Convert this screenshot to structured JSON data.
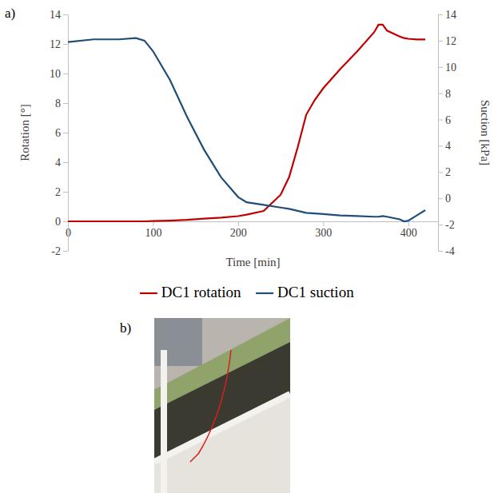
{
  "chart_data": {
    "type": "line",
    "panel_labels": [
      "a)",
      "b)"
    ],
    "xlabel": "Time [min]",
    "ylabel": "Rotation [°]",
    "y2label": "Suction [kPa]",
    "xlim": [
      0,
      435
    ],
    "xticks": [
      0,
      100,
      200,
      300,
      400
    ],
    "ylim": [
      -2,
      14
    ],
    "yticks": [
      -2,
      0,
      2,
      4,
      6,
      8,
      10,
      12,
      14
    ],
    "y2lim": [
      -4,
      14
    ],
    "y2ticks": [
      -4,
      -2,
      0,
      2,
      4,
      6,
      8,
      10,
      12,
      14
    ],
    "grid": false,
    "legend": "bottom",
    "x": [
      0,
      30,
      60,
      80,
      90,
      100,
      120,
      140,
      160,
      180,
      200,
      210,
      230,
      250,
      260,
      270,
      280,
      290,
      300,
      320,
      340,
      360,
      365,
      370,
      375,
      390,
      395,
      400,
      410,
      420
    ],
    "series": [
      {
        "name": "DC1 rotation",
        "color": "#c00000",
        "values": [
          0,
          0,
          0,
          0,
          0,
          0.02,
          0.05,
          0.1,
          0.18,
          0.25,
          0.35,
          0.45,
          0.7,
          1.8,
          3,
          5,
          7.2,
          8.2,
          9,
          10.3,
          11.5,
          12.8,
          13.3,
          13.3,
          12.9,
          12.5,
          12.4,
          12.35,
          12.3,
          12.3
        ]
      },
      {
        "name": "DC1 suction",
        "color": "#1f4e79",
        "axis": "y2",
        "values": [
          11.9,
          12.1,
          12.1,
          12.2,
          12.0,
          11.2,
          9.0,
          6.2,
          3.7,
          1.6,
          0.1,
          -0.3,
          -0.5,
          -0.7,
          -0.8,
          -0.95,
          -1.1,
          -1.15,
          -1.2,
          -1.3,
          -1.35,
          -1.4,
          -1.4,
          -1.35,
          -1.4,
          -1.6,
          -1.75,
          -1.7,
          -1.3,
          -0.9
        ]
      }
    ]
  }
}
